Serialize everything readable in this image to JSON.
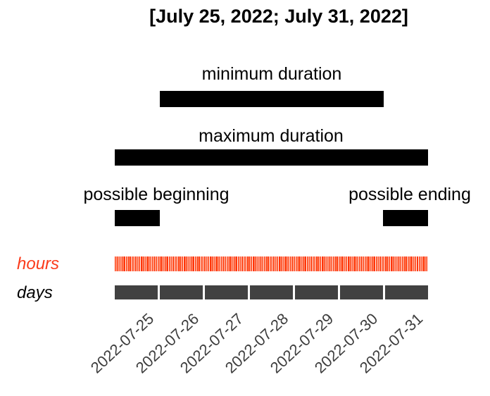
{
  "title": "[July 25, 2022; July 31, 2022]",
  "colors": {
    "interval_bar": "#000000",
    "hours_accent": "#ff3300",
    "hours_label": "#fb3b1b",
    "days_bar": "#414141",
    "axis_label": "#3d3d3d"
  },
  "chart_data": {
    "type": "bar",
    "title": "[July 25, 2022; July 31, 2022]",
    "description": "Temporal interval diagram for the closed date interval July 25, 2022 to July 31, 2022, showing minimum/maximum possible durations and the possible beginning/ending day ranges over a 7-day axis, with hour and day granularity tracks.",
    "x_axis": {
      "start": "2022-07-25",
      "end": "2022-08-01",
      "tick_labels": [
        "2022-07-25",
        "2022-07-26",
        "2022-07-27",
        "2022-07-28",
        "2022-07-29",
        "2022-07-30",
        "2022-07-31"
      ],
      "tick_rotation_deg": -43
    },
    "bars": [
      {
        "label": "minimum duration",
        "start": "2022-07-26 00:00",
        "end": "2022-07-31 00:00",
        "duration_days": 5
      },
      {
        "label": "maximum duration",
        "start": "2022-07-25 00:00",
        "end": "2022-08-01 00:00",
        "duration_days": 7
      },
      {
        "label": "possible beginning",
        "start": "2022-07-25 00:00",
        "end": "2022-07-26 00:00",
        "duration_days": 1
      },
      {
        "label": "possible ending",
        "start": "2022-07-31 00:00",
        "end": "2022-08-01 00:00",
        "duration_days": 1
      }
    ],
    "granularity_rows": [
      {
        "label": "hours",
        "segment_count": 168
      },
      {
        "label": "days",
        "segment_count": 7
      }
    ],
    "legend": "none",
    "grid": false
  }
}
